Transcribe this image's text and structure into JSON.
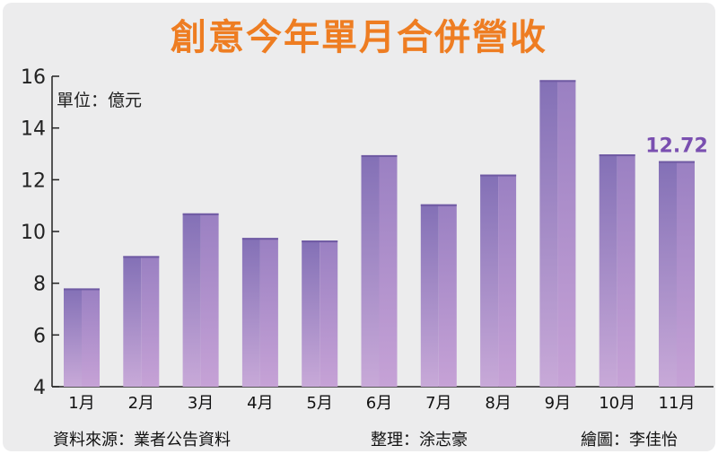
{
  "chart_data": {
    "type": "bar",
    "title": "創意今年單月合併營收",
    "unit_label": "單位：億元",
    "categories": [
      "1月",
      "2月",
      "3月",
      "4月",
      "5月",
      "6月",
      "7月",
      "8月",
      "9月",
      "10月",
      "11月"
    ],
    "values": [
      7.8,
      9.05,
      10.7,
      9.75,
      9.65,
      12.95,
      11.05,
      12.2,
      15.85,
      12.98,
      12.72
    ],
    "data_labels": [
      {
        "index": 10,
        "text": "12.72"
      }
    ],
    "yticks": [
      "4",
      "6",
      "8",
      "10",
      "12",
      "14",
      "16"
    ],
    "ylim": [
      4,
      16
    ],
    "grid": false,
    "colors": {
      "bar_top": "#8370b6",
      "bar_bottom": "#c8a9d8",
      "title": "#ee7d22",
      "data_label": "#7a4fb0",
      "background": "#ececed"
    }
  },
  "footer": {
    "source": "資料來源：業者公告資料",
    "editor": "整理：涂志豪",
    "artist": "繪圖：李佳怡"
  }
}
